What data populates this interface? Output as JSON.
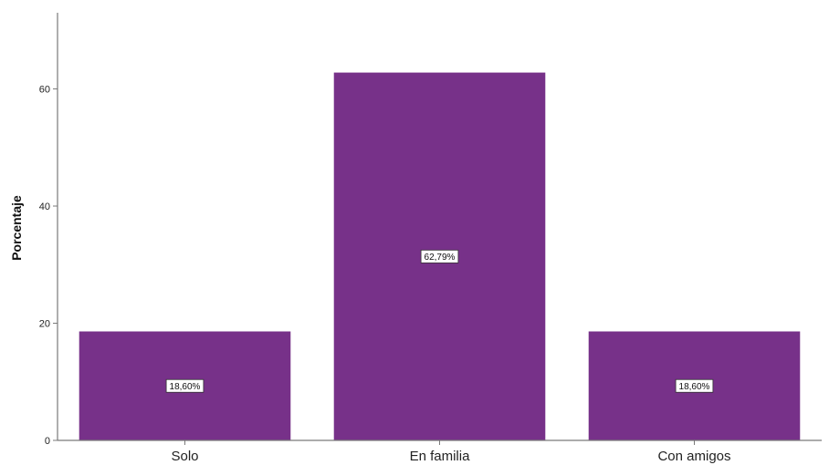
{
  "chart_data": {
    "type": "bar",
    "title": "",
    "xlabel": "",
    "ylabel": "Porcentaje",
    "categories": [
      "Solo",
      "En familia",
      "Con amigos"
    ],
    "values": [
      18.6,
      62.79,
      18.6
    ],
    "data_labels": [
      "18,60%",
      "62,79%",
      "18,60%"
    ],
    "yticks": [
      0,
      20,
      40,
      60
    ],
    "ytick_labels": [
      "0",
      "20",
      "40",
      "60"
    ],
    "ylim": [
      0,
      73
    ],
    "grid": false,
    "bar_color": "#773189",
    "axis_color": "#7a7a7a"
  }
}
